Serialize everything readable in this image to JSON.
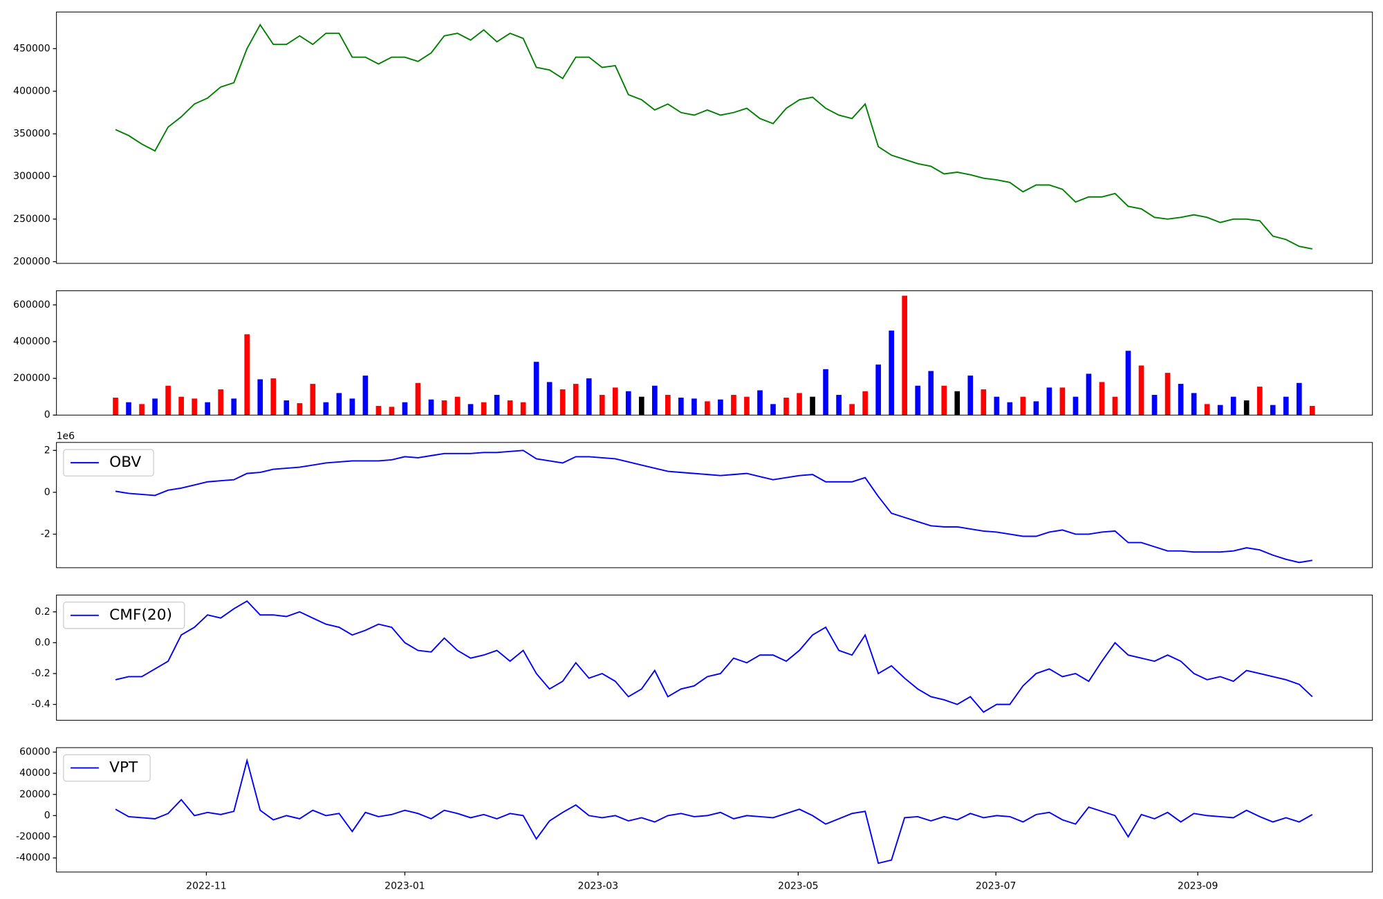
{
  "chart_data": [
    {
      "type": "line",
      "xlim": [
        -4.49,
        95.57
      ],
      "ylim": [
        198000,
        493000
      ],
      "yticks": [
        200000,
        250000,
        300000,
        350000,
        400000,
        450000
      ],
      "series": [
        {
          "color": "green",
          "values": [
            355000,
            348000,
            338000,
            330000,
            358000,
            370000,
            385000,
            392000,
            405000,
            410000,
            450000,
            478000,
            455000,
            455000,
            465000,
            455000,
            468000,
            468000,
            440000,
            440000,
            432000,
            440000,
            440000,
            435000,
            445000,
            465000,
            468000,
            460000,
            472000,
            458000,
            468000,
            462000,
            428000,
            425000,
            415000,
            440000,
            440000,
            428000,
            430000,
            396000,
            390000,
            378000,
            385000,
            375000,
            372000,
            378000,
            372000,
            375000,
            380000,
            368000,
            362000,
            380000,
            390000,
            393000,
            380000,
            372000,
            368000,
            385000,
            335000,
            325000,
            320000,
            315000,
            312000,
            303000,
            305000,
            302000,
            298000,
            296000,
            293000,
            282000,
            290000,
            290000,
            285000,
            270000,
            276000,
            276000,
            280000,
            265000,
            262000,
            252000,
            250000,
            252000,
            255000,
            252000,
            246000,
            250000,
            250000,
            248000,
            230000,
            226000,
            218000,
            215000
          ]
        }
      ]
    },
    {
      "type": "bar",
      "xlim": [
        -4.49,
        95.57
      ],
      "ylim": [
        0,
        677000
      ],
      "yticks": [
        0,
        200000,
        400000,
        600000
      ],
      "values": [
        95000,
        70000,
        60000,
        90000,
        160000,
        100000,
        90000,
        70000,
        140000,
        90000,
        440000,
        195000,
        200000,
        80000,
        65000,
        170000,
        70000,
        120000,
        90000,
        215000,
        50000,
        45000,
        70000,
        175000,
        85000,
        80000,
        100000,
        60000,
        70000,
        110000,
        80000,
        70000,
        290000,
        180000,
        140000,
        170000,
        200000,
        110000,
        150000,
        130000,
        100000,
        160000,
        110000,
        95000,
        90000,
        75000,
        85000,
        110000,
        100000,
        135000,
        60000,
        95000,
        120000,
        100000,
        250000,
        110000,
        60000,
        130000,
        275000,
        460000,
        650000,
        160000,
        240000,
        160000,
        130000,
        215000,
        140000,
        100000,
        70000,
        100000,
        75000,
        150000,
        150000,
        100000,
        225000,
        180000,
        100000,
        350000,
        270000,
        110000,
        230000,
        170000,
        120000,
        60000,
        55000,
        100000,
        80000,
        155000,
        55000,
        100000,
        175000,
        50000
      ],
      "colors": [
        "red",
        "blue",
        "red",
        "blue",
        "red",
        "red",
        "red",
        "blue",
        "red",
        "blue",
        "red",
        "blue",
        "red",
        "blue",
        "red",
        "red",
        "blue",
        "blue",
        "blue",
        "blue",
        "red",
        "red",
        "blue",
        "red",
        "blue",
        "red",
        "red",
        "blue",
        "red",
        "blue",
        "red",
        "red",
        "blue",
        "blue",
        "red",
        "red",
        "blue",
        "red",
        "red",
        "blue",
        "black",
        "blue",
        "red",
        "blue",
        "blue",
        "red",
        "blue",
        "red",
        "red",
        "blue",
        "blue",
        "red",
        "red",
        "black",
        "blue",
        "blue",
        "red",
        "red",
        "blue",
        "blue",
        "red",
        "blue",
        "blue",
        "red",
        "black",
        "blue",
        "red",
        "blue",
        "blue",
        "red",
        "blue",
        "blue",
        "red",
        "blue",
        "blue",
        "red",
        "red",
        "blue",
        "red",
        "blue",
        "red",
        "blue",
        "blue",
        "red",
        "blue",
        "blue",
        "black",
        "red",
        "blue",
        "blue",
        "blue",
        "red"
      ]
    },
    {
      "type": "line",
      "xlim": [
        -4.49,
        95.57
      ],
      "ylim": [
        -3.6,
        2.38
      ],
      "yticks": [
        -2,
        0,
        2
      ],
      "y_offset_label": "1e6",
      "legend": "upper left",
      "series": [
        {
          "name": "OBV",
          "color": "blue",
          "values": [
            0.05,
            -0.05,
            -0.1,
            -0.15,
            0.1,
            0.2,
            0.35,
            0.5,
            0.55,
            0.6,
            0.9,
            0.95,
            1.1,
            1.15,
            1.2,
            1.3,
            1.4,
            1.45,
            1.5,
            1.5,
            1.5,
            1.55,
            1.7,
            1.65,
            1.75,
            1.85,
            1.85,
            1.85,
            1.9,
            1.9,
            1.95,
            2.0,
            1.6,
            1.5,
            1.4,
            1.7,
            1.7,
            1.65,
            1.6,
            1.45,
            1.3,
            1.15,
            1.0,
            0.95,
            0.9,
            0.85,
            0.8,
            0.85,
            0.9,
            0.75,
            0.6,
            0.7,
            0.8,
            0.85,
            0.5,
            0.5,
            0.5,
            0.7,
            -0.2,
            -1.0,
            -1.2,
            -1.4,
            -1.6,
            -1.65,
            -1.65,
            -1.75,
            -1.85,
            -1.9,
            -2.0,
            -2.1,
            -2.1,
            -1.9,
            -1.8,
            -2.0,
            -2.0,
            -1.9,
            -1.85,
            -2.4,
            -2.4,
            -2.6,
            -2.8,
            -2.8,
            -2.85,
            -2.85,
            -2.85,
            -2.8,
            -2.65,
            -2.75,
            -3.0,
            -3.2,
            -3.35,
            -3.25
          ]
        }
      ]
    },
    {
      "type": "line",
      "xlim": [
        -4.49,
        95.57
      ],
      "ylim": [
        -0.503,
        0.309
      ],
      "yticks": [
        -0.4,
        -0.2,
        {
          "value": 0,
          "label": "0.0"
        },
        0.2
      ],
      "legend": "upper left",
      "series": [
        {
          "name": "CMF(20)",
          "color": "blue",
          "values": [
            -0.24,
            -0.22,
            -0.22,
            -0.17,
            -0.12,
            0.05,
            0.1,
            0.18,
            0.16,
            0.22,
            0.27,
            0.18,
            0.18,
            0.17,
            0.2,
            0.16,
            0.12,
            0.1,
            0.05,
            0.08,
            0.12,
            0.1,
            0.0,
            -0.05,
            -0.06,
            0.03,
            -0.05,
            -0.1,
            -0.08,
            -0.05,
            -0.12,
            -0.05,
            -0.2,
            -0.3,
            -0.25,
            -0.13,
            -0.23,
            -0.2,
            -0.25,
            -0.35,
            -0.3,
            -0.18,
            -0.35,
            -0.3,
            -0.28,
            -0.22,
            -0.2,
            -0.1,
            -0.13,
            -0.08,
            -0.08,
            -0.12,
            -0.05,
            0.05,
            0.1,
            -0.05,
            -0.08,
            0.05,
            -0.2,
            -0.15,
            -0.23,
            -0.3,
            -0.35,
            -0.37,
            -0.4,
            -0.35,
            -0.45,
            -0.4,
            -0.4,
            -0.28,
            -0.2,
            -0.17,
            -0.22,
            -0.2,
            -0.25,
            -0.12,
            0.0,
            -0.08,
            -0.1,
            -0.12,
            -0.08,
            -0.12,
            -0.2,
            -0.24,
            -0.22,
            -0.25,
            -0.18,
            -0.2,
            -0.22,
            -0.24,
            -0.27,
            -0.35
          ]
        }
      ]
    },
    {
      "type": "line",
      "xlim": [
        -4.49,
        95.57
      ],
      "ylim": [
        -53300,
        64200
      ],
      "yticks": [
        -40000,
        -20000,
        0,
        20000,
        40000,
        60000
      ],
      "legend": "upper left",
      "xticks": [
        {
          "value": 6.91,
          "label": "2022-11"
        },
        {
          "value": 22.0,
          "label": "2023-01"
        },
        {
          "value": 36.69,
          "label": "2023-03"
        },
        {
          "value": 51.91,
          "label": "2023-05"
        },
        {
          "value": 66.94,
          "label": "2023-07"
        },
        {
          "value": 82.29,
          "label": "2023-09"
        }
      ],
      "series": [
        {
          "name": "VPT",
          "color": "blue",
          "values": [
            6000,
            -1000,
            -2000,
            -3000,
            2000,
            15000,
            0,
            3000,
            1000,
            4000,
            52000,
            5000,
            -4000,
            0,
            -3000,
            5000,
            0,
            2000,
            -15000,
            3000,
            -1000,
            1000,
            5000,
            2000,
            -3000,
            5000,
            2000,
            -2000,
            1000,
            -3000,
            2000,
            0,
            -22000,
            -5000,
            3000,
            10000,
            0,
            -2000,
            0,
            -5000,
            -2000,
            -6000,
            0,
            2000,
            -1000,
            0,
            3000,
            -3000,
            0,
            -1000,
            -2000,
            2000,
            6000,
            0,
            -8000,
            -3000,
            2000,
            4000,
            -45000,
            -42000,
            -2000,
            -1000,
            -5000,
            -1000,
            -4000,
            2000,
            -2000,
            0,
            -1000,
            -6000,
            1000,
            3000,
            -4000,
            -8000,
            8000,
            4000,
            0,
            -20000,
            1000,
            -3000,
            3000,
            -6000,
            2000,
            0,
            -1000,
            -2000,
            5000,
            -1000,
            -6000,
            -2000,
            -6000,
            1000
          ]
        }
      ]
    }
  ]
}
